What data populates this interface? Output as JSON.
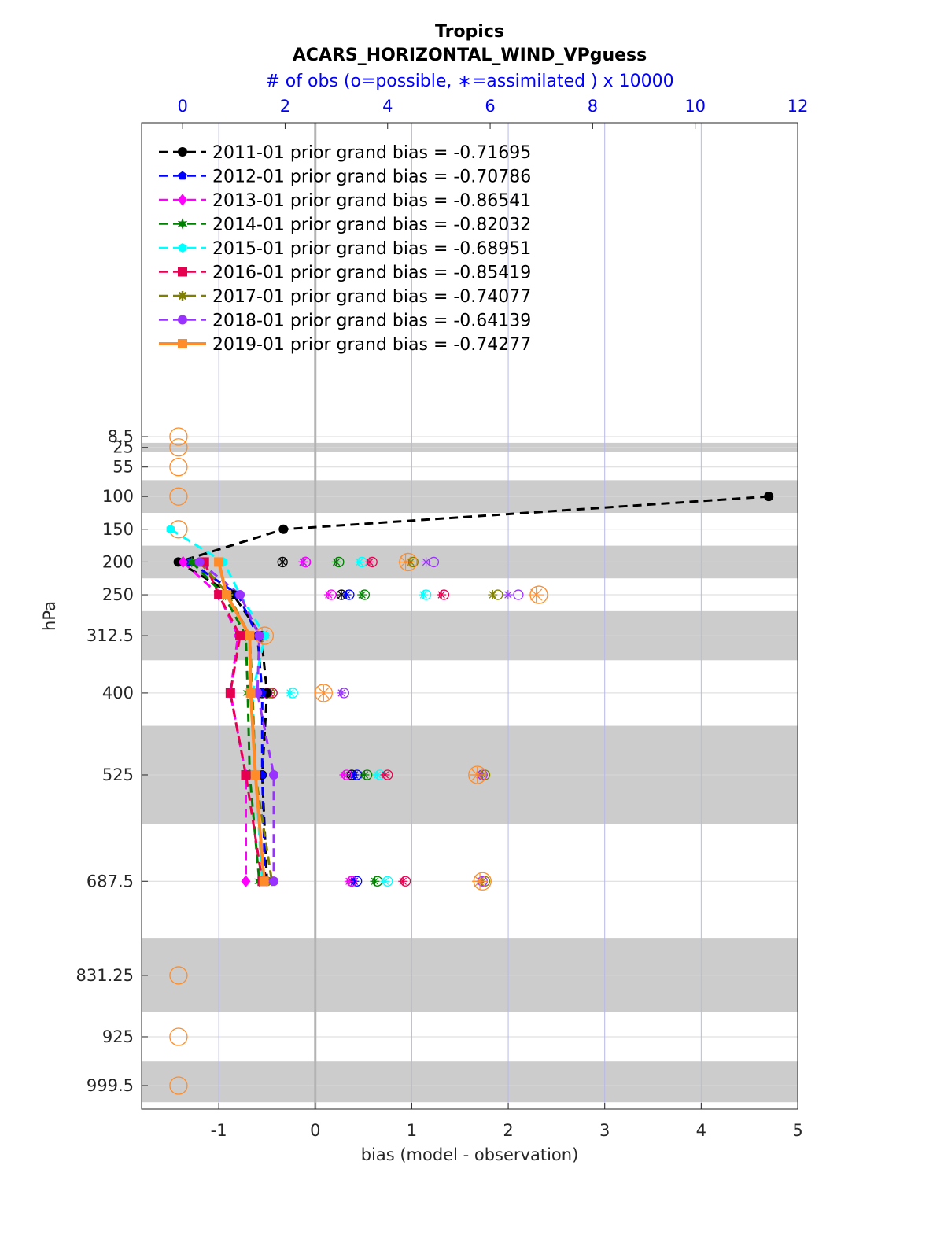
{
  "chart_data": {
    "type": "scatter",
    "title": "Tropics",
    "subtitle": "ACARS_HORIZONTAL_WIND_VPguess",
    "top_axis_label": "# of obs (o=possible, ∗=assimilated ) x 10000",
    "xlabel": "bias (model - observation)",
    "ylabel": "hPa",
    "xlim": [
      -1.8,
      5
    ],
    "x_ticks": [
      "-1",
      "0",
      "1",
      "2",
      "3",
      "4",
      "5"
    ],
    "top_xlim": [
      -0.8,
      12
    ],
    "top_ticks": [
      "0",
      "2",
      "4",
      "6",
      "8",
      "10",
      "12"
    ],
    "y_reversed": true,
    "levels": [
      8.5,
      25,
      55,
      100,
      150,
      200,
      250,
      312.5,
      400,
      525,
      687.5,
      831.25,
      925,
      999.5
    ],
    "y_tick_labels": [
      "8.5",
      "25",
      "55",
      "100",
      "150",
      "200",
      "250",
      "312.5",
      "400",
      "525",
      "687.5",
      "831.25",
      "925",
      "999.5"
    ],
    "shaded_bands": [
      [
        18,
        32
      ],
      [
        75,
        125
      ],
      [
        175,
        225
      ],
      [
        275,
        350
      ],
      [
        450,
        600
      ],
      [
        775,
        887.5
      ],
      [
        962.5,
        1025
      ]
    ],
    "legend_position": "top-left",
    "series": [
      {
        "name": "2011-01 prior grand bias = -0.71695",
        "color": "#000000",
        "marker": "circle",
        "line": "dashed",
        "bias": [
          [
            100,
            4.7
          ],
          [
            150,
            -0.33
          ],
          [
            200,
            -1.42
          ],
          [
            250,
            -0.85
          ],
          [
            312.5,
            -0.56
          ],
          [
            400,
            -0.5
          ],
          [
            525,
            -0.55
          ],
          [
            687.5,
            -0.5
          ]
        ],
        "obs_possible": [
          [
            200,
            1.95
          ],
          [
            250,
            3.1
          ],
          [
            400,
            1.55
          ],
          [
            525,
            3.3
          ],
          [
            687.5,
            3.3
          ]
        ],
        "obs_assim": [
          [
            200,
            1.95
          ],
          [
            250,
            3.1
          ],
          [
            400,
            1.55
          ],
          [
            525,
            3.3
          ],
          [
            687.5,
            3.3
          ]
        ]
      },
      {
        "name": "2012-01 prior grand bias = -0.70786",
        "color": "#0000ff",
        "marker": "pentagon",
        "line": "dashed",
        "bias": [
          [
            200,
            -1.3
          ],
          [
            250,
            -0.8
          ],
          [
            312.5,
            -0.6
          ],
          [
            400,
            -0.55
          ],
          [
            525,
            -0.55
          ],
          [
            687.5,
            -0.52
          ]
        ],
        "obs_possible": [
          [
            200,
            2.4
          ],
          [
            250,
            3.25
          ],
          [
            400,
            1.7
          ],
          [
            525,
            3.4
          ],
          [
            687.5,
            3.4
          ]
        ],
        "obs_assim": [
          [
            200,
            2.35
          ],
          [
            250,
            3.2
          ],
          [
            400,
            1.65
          ],
          [
            525,
            3.35
          ],
          [
            687.5,
            3.35
          ]
        ]
      },
      {
        "name": "2013-01 prior grand bias = -0.86541",
        "color": "#ff00ff",
        "marker": "diamond",
        "line": "dashed",
        "bias": [
          [
            200,
            -1.37
          ],
          [
            250,
            -1.0
          ],
          [
            312.5,
            -0.8
          ],
          [
            400,
            -0.88
          ],
          [
            525,
            -0.72
          ],
          [
            687.5,
            -0.72
          ]
        ],
        "obs_possible": [
          [
            200,
            2.4
          ],
          [
            250,
            2.9
          ],
          [
            400,
            1.65
          ],
          [
            525,
            3.2
          ],
          [
            687.5,
            3.3
          ]
        ],
        "obs_assim": [
          [
            200,
            2.35
          ],
          [
            250,
            2.85
          ],
          [
            400,
            1.6
          ],
          [
            525,
            3.15
          ],
          [
            687.5,
            3.25
          ]
        ]
      },
      {
        "name": "2014-01 prior grand bias = -0.82032",
        "color": "#008000",
        "marker": "hexagram",
        "line": "dashed",
        "bias": [
          [
            200,
            -1.28
          ],
          [
            250,
            -0.95
          ],
          [
            312.5,
            -0.72
          ],
          [
            400,
            -0.7
          ],
          [
            525,
            -0.68
          ],
          [
            687.5,
            -0.58
          ]
        ],
        "obs_possible": [
          [
            200,
            3.05
          ],
          [
            250,
            3.55
          ],
          [
            400,
            1.75
          ],
          [
            525,
            3.6
          ],
          [
            687.5,
            3.8
          ]
        ],
        "obs_assim": [
          [
            200,
            3.0
          ],
          [
            250,
            3.5
          ],
          [
            400,
            1.7
          ],
          [
            525,
            3.55
          ],
          [
            687.5,
            3.75
          ]
        ]
      },
      {
        "name": "2015-01 prior grand bias = -0.68951",
        "color": "#00ffff",
        "marker": "hexagon",
        "line": "dashed",
        "bias": [
          [
            150,
            -1.5
          ],
          [
            200,
            -0.95
          ],
          [
            250,
            -0.78
          ],
          [
            312.5,
            -0.52
          ],
          [
            400,
            -0.65
          ],
          [
            525,
            -0.62
          ],
          [
            687.5,
            -0.55
          ]
        ],
        "obs_possible": [
          [
            200,
            3.5
          ],
          [
            250,
            4.75
          ],
          [
            400,
            2.15
          ],
          [
            525,
            3.85
          ],
          [
            687.5,
            4.0
          ]
        ],
        "obs_assim": [
          [
            200,
            3.45
          ],
          [
            250,
            4.7
          ],
          [
            400,
            2.1
          ],
          [
            525,
            3.8
          ],
          [
            687.5,
            3.95
          ]
        ]
      },
      {
        "name": "2016-01 prior grand bias = -0.85419",
        "color": "#e60050",
        "marker": "square",
        "line": "dashed",
        "bias": [
          [
            200,
            -1.15
          ],
          [
            250,
            -1.0
          ],
          [
            312.5,
            -0.78
          ],
          [
            400,
            -0.88
          ],
          [
            525,
            -0.72
          ],
          [
            687.5,
            -0.55
          ]
        ],
        "obs_possible": [
          [
            200,
            3.7
          ],
          [
            250,
            5.1
          ],
          [
            400,
            1.75
          ],
          [
            525,
            4.0
          ],
          [
            687.5,
            4.35
          ]
        ],
        "obs_assim": [
          [
            200,
            3.65
          ],
          [
            250,
            5.05
          ],
          [
            400,
            1.7
          ],
          [
            525,
            3.95
          ],
          [
            687.5,
            4.3
          ]
        ]
      },
      {
        "name": "2017-01 prior grand bias = -0.74077",
        "color": "#808000",
        "marker": "asterisk",
        "line": "dashed",
        "bias": [
          [
            200,
            -1.2
          ],
          [
            250,
            -0.9
          ],
          [
            312.5,
            -0.68
          ],
          [
            400,
            -0.65
          ],
          [
            525,
            -0.62
          ],
          [
            687.5,
            -0.45
          ]
        ],
        "obs_possible": [
          [
            200,
            4.5
          ],
          [
            250,
            6.15
          ],
          [
            400,
            1.7
          ],
          [
            525,
            5.9
          ],
          [
            687.5,
            5.9
          ]
        ],
        "obs_assim": [
          [
            200,
            4.45
          ],
          [
            250,
            6.05
          ],
          [
            400,
            1.65
          ],
          [
            525,
            5.85
          ],
          [
            687.5,
            5.85
          ]
        ]
      },
      {
        "name": "2018-01 prior grand bias = -0.64139",
        "color": "#9932ff",
        "marker": "circle",
        "line": "dashed",
        "bias": [
          [
            200,
            -1.2
          ],
          [
            250,
            -0.78
          ],
          [
            312.5,
            -0.58
          ],
          [
            400,
            -0.6
          ],
          [
            525,
            -0.43
          ],
          [
            687.5,
            -0.43
          ]
        ],
        "obs_possible": [
          [
            200,
            4.9
          ],
          [
            250,
            6.55
          ],
          [
            400,
            3.15
          ],
          [
            525,
            5.85
          ],
          [
            687.5,
            5.85
          ]
        ],
        "obs_assim": [
          [
            200,
            4.75
          ],
          [
            250,
            6.35
          ],
          [
            400,
            3.1
          ],
          [
            525,
            5.8
          ],
          [
            687.5,
            5.8
          ]
        ]
      },
      {
        "name": "2019-01 prior grand bias = -0.74277",
        "color": "#ff8c28",
        "marker": "square",
        "line": "solid",
        "bias": [
          [
            200,
            -1.0
          ],
          [
            250,
            -0.92
          ],
          [
            312.5,
            -0.68
          ],
          [
            400,
            -0.67
          ],
          [
            525,
            -0.62
          ],
          [
            687.5,
            -0.53
          ]
        ],
        "obs_possible": [
          [
            8.5,
            -0.08
          ],
          [
            25,
            -0.08
          ],
          [
            55,
            -0.08
          ],
          [
            100,
            -0.08
          ],
          [
            150,
            -0.08
          ],
          [
            200,
            4.4
          ],
          [
            250,
            6.95
          ],
          [
            312.5,
            1.6
          ],
          [
            400,
            2.75
          ],
          [
            525,
            5.75
          ],
          [
            687.5,
            5.85
          ],
          [
            831.25,
            -0.08
          ],
          [
            925,
            -0.08
          ],
          [
            999.5,
            -0.08
          ]
        ],
        "obs_assim": [
          [
            200,
            4.35
          ],
          [
            250,
            6.9
          ],
          [
            312.5,
            1.55
          ],
          [
            400,
            2.75
          ],
          [
            525,
            5.75
          ],
          [
            687.5,
            5.8
          ]
        ]
      }
    ]
  }
}
